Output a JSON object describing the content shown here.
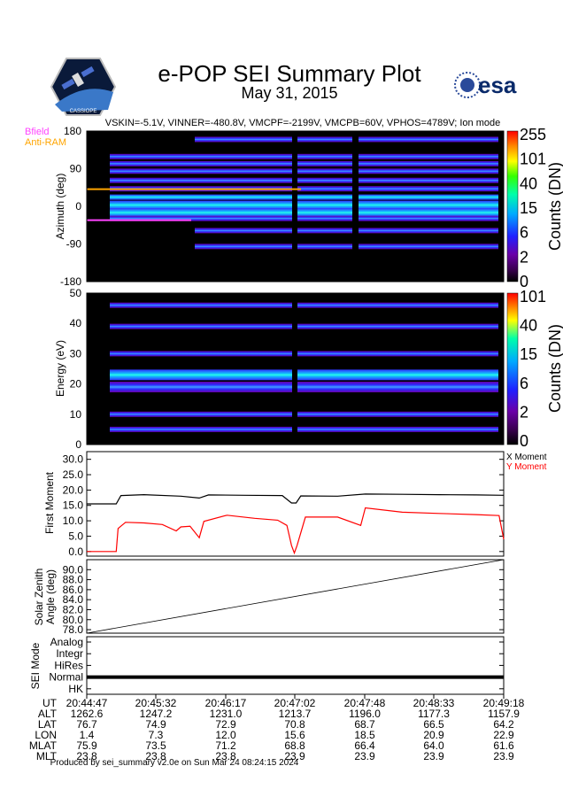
{
  "header": {
    "title": "e-POP SEI Summary Plot",
    "date": "May 31, 2015",
    "params": "VSKIN=-5.1V, VINNER=-480.8V, VMCPF=-2199V, VMCPB=60V, VPHOS=4789V; Ion mode",
    "logo_left": "CASSIOPE",
    "logo_right": "esa"
  },
  "footer": "Produced by sei_summary v2.0e on Sun Mar 24 08:24:15 2024",
  "colors": {
    "x_moment": "#000000",
    "y_moment": "#ff0000",
    "bfield": "#ff44ff",
    "anti_ram": "#ffa500"
  },
  "chart_data": [
    {
      "type": "heatmap",
      "name": "azimuth",
      "ylabel": "Azimuth (deg)",
      "ylim": [
        -180,
        180
      ],
      "yticks": [
        180,
        90,
        0,
        -90,
        -180
      ],
      "legend": [
        "Bfield",
        "Anti-RAM"
      ],
      "markers": {
        "bfield_deg": -33,
        "anti_ram_deg": 41
      },
      "colorbar": {
        "label": "Counts (DN)",
        "ticks": [
          "255",
          "101",
          "40",
          "15",
          "6",
          "2",
          "0"
        ]
      },
      "bands_deg": [
        160,
        119,
        102,
        84,
        62,
        42,
        22,
        3,
        -15,
        -29,
        -58,
        -96
      ]
    },
    {
      "type": "heatmap",
      "name": "energy",
      "ylabel": "Energy (eV)",
      "ylim": [
        0,
        50
      ],
      "yticks": [
        50,
        40,
        30,
        20,
        10,
        0
      ],
      "colorbar": {
        "label": "Counts (DN)",
        "ticks": [
          "101",
          "40",
          "15",
          "6",
          "2",
          "0"
        ]
      },
      "bands_ev": [
        46,
        39,
        30,
        23,
        19,
        10,
        5
      ]
    },
    {
      "type": "line",
      "name": "first_moment",
      "ylabel": "First Moment",
      "ylim": [
        -1.5,
        32.5
      ],
      "yticks": [
        "30.0",
        "25.0",
        "20.0",
        "15.0",
        "10.0",
        "5.0",
        "0.0"
      ],
      "legend": [
        "X Moment",
        "Y Moment"
      ],
      "x_min": [
        44.78,
        49.3
      ],
      "series": [
        {
          "name": "X Moment",
          "x": [
            44.78,
            45.1,
            45.15,
            45.4,
            45.8,
            46.0,
            46.1,
            46.5,
            46.9,
            47.0,
            47.05,
            47.1,
            47.5,
            47.8,
            48.2,
            48.6,
            49.0,
            49.3
          ],
          "y": [
            15.5,
            15.5,
            18.2,
            18.5,
            18.0,
            17.4,
            18.4,
            18.3,
            18.2,
            15.8,
            15.8,
            18.1,
            18.0,
            18.7,
            18.6,
            18.5,
            18.4,
            18.3
          ]
        },
        {
          "name": "Y Moment",
          "x": [
            44.78,
            45.1,
            45.12,
            45.2,
            45.4,
            45.6,
            45.75,
            45.8,
            45.9,
            46.0,
            46.05,
            46.3,
            46.6,
            46.85,
            46.95,
            47.0,
            47.03,
            47.06,
            47.15,
            47.5,
            47.75,
            47.8,
            48.2,
            48.6,
            49.0,
            49.25,
            49.3
          ],
          "y": [
            0,
            0,
            7.5,
            9.5,
            9.3,
            8.8,
            6.7,
            8.0,
            8.2,
            4.5,
            9.8,
            11.8,
            10.8,
            10.2,
            8.5,
            2.0,
            -0.5,
            2.0,
            11.2,
            11.2,
            8.5,
            14.2,
            12.8,
            12.4,
            12.0,
            11.7,
            4.0
          ]
        }
      ]
    },
    {
      "type": "line",
      "name": "solar_zenith",
      "ylabel": [
        "Solar Zenith",
        "Angle (deg)"
      ],
      "ylim": [
        77.3,
        92
      ],
      "yticks": [
        "90.0",
        "88.0",
        "86.0",
        "84.0",
        "82.0",
        "80.0",
        "78.0"
      ],
      "series": [
        {
          "name": "SZA",
          "x": [
            44.78,
            49.3
          ],
          "y": [
            77.3,
            92.0
          ]
        }
      ]
    },
    {
      "type": "line",
      "name": "sei_mode",
      "ylabel": "SEI Mode",
      "categories": [
        "Analog",
        "Integr",
        "HiRes",
        "Normal",
        "HK"
      ],
      "series": [
        {
          "name": "mode",
          "value": "Normal"
        }
      ]
    }
  ],
  "axis_table": {
    "row_labels": [
      "UT",
      "ALT",
      "LAT",
      "LON",
      "MLAT",
      "MLT"
    ],
    "columns": [
      [
        "20:44:47",
        "1262.6",
        "76.7",
        "1.4",
        "75.9",
        "23.8"
      ],
      [
        "20:45:32",
        "1247.2",
        "74.9",
        "7.3",
        "73.5",
        "23.8"
      ],
      [
        "20:46:17",
        "1231.0",
        "72.9",
        "12.0",
        "71.2",
        "23.8"
      ],
      [
        "20:47:02",
        "1213.7",
        "70.8",
        "15.6",
        "68.8",
        "23.9"
      ],
      [
        "20:47:48",
        "1196.0",
        "68.7",
        "18.5",
        "66.4",
        "23.9"
      ],
      [
        "20:48:33",
        "1177.3",
        "66.5",
        "20.9",
        "64.0",
        "23.9"
      ],
      [
        "20:49:18",
        "1157.9",
        "64.2",
        "22.9",
        "61.6",
        "23.9"
      ]
    ]
  }
}
